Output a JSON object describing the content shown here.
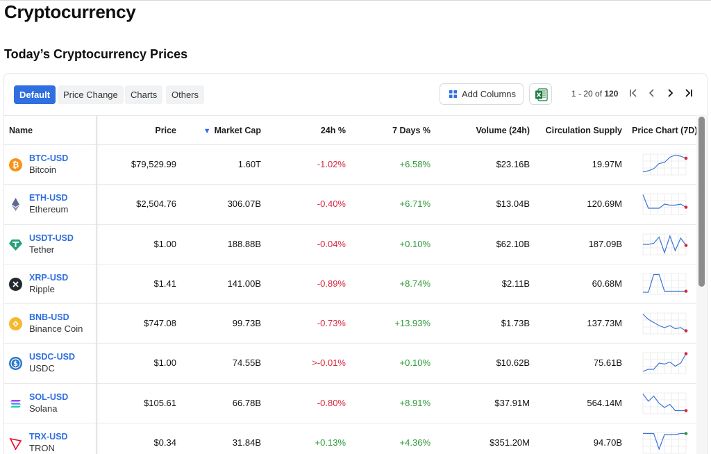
{
  "page": {
    "title": "Cryptocurrency",
    "section_title": "Today’s Cryptocurrency Prices"
  },
  "toolbar": {
    "tabs": [
      {
        "label": "Default",
        "active": true
      },
      {
        "label": "Price Change",
        "active": false
      },
      {
        "label": "Charts",
        "active": false
      },
      {
        "label": "Others",
        "active": false
      }
    ],
    "add_columns_label": "Add Columns",
    "add_columns_icon": "grid-plus-icon",
    "export_icon": "excel-icon",
    "pagination": {
      "range": "1 - 20 of ",
      "total": "120"
    }
  },
  "table": {
    "headers": {
      "name": "Name",
      "price": "Price",
      "market_cap": "Market Cap",
      "change_24h": "24h %",
      "change_7d": "7 Days %",
      "volume": "Volume (24h)",
      "supply": "Circulation Supply",
      "chart": "Price Chart (7D)"
    },
    "sort_indicator": "▼",
    "rows": [
      {
        "symbol": "BTC-USD",
        "name": "Bitcoin",
        "icon": "bitcoin-icon",
        "price": "$79,529.99",
        "market_cap": "1.60T",
        "change_24h": "-1.02%",
        "change_7d": "+6.58%",
        "volume": "$23.16B",
        "supply": "19.97M",
        "trend": [
          0.15,
          0.2,
          0.3,
          0.55,
          0.6,
          0.85,
          0.95,
          0.9,
          0.8
        ]
      },
      {
        "symbol": "ETH-USD",
        "name": "Ethereum",
        "icon": "ethereum-icon",
        "price": "$2,504.76",
        "market_cap": "306.07B",
        "change_24h": "-0.40%",
        "change_7d": "+6.71%",
        "volume": "$13.04B",
        "supply": "120.69M",
        "trend": [
          0.95,
          0.3,
          0.3,
          0.3,
          0.5,
          0.45,
          0.45,
          0.5,
          0.35
        ]
      },
      {
        "symbol": "USDT-USD",
        "name": "Tether",
        "icon": "tether-icon",
        "price": "$1.00",
        "market_cap": "188.88B",
        "change_24h": "-0.04%",
        "change_7d": "+0.10%",
        "volume": "$62.10B",
        "supply": "187.09B",
        "trend": [
          0.5,
          0.5,
          0.55,
          0.85,
          0.1,
          0.9,
          0.2,
          0.8,
          0.45
        ]
      },
      {
        "symbol": "XRP-USD",
        "name": "Ripple",
        "icon": "xrp-icon",
        "price": "$1.41",
        "market_cap": "141.00B",
        "change_24h": "-0.89%",
        "change_7d": "+8.74%",
        "volume": "$2.11B",
        "supply": "60.68M",
        "trend": [
          0.1,
          0.1,
          0.95,
          0.95,
          0.15,
          0.15,
          0.15,
          0.15,
          0.15
        ]
      },
      {
        "symbol": "BNB-USD",
        "name": "Binance Coin",
        "icon": "bnb-icon",
        "price": "$747.08",
        "market_cap": "99.73B",
        "change_24h": "-0.73%",
        "change_7d": "+13.93%",
        "volume": "$1.73B",
        "supply": "137.73M",
        "trend": [
          0.95,
          0.7,
          0.55,
          0.4,
          0.3,
          0.4,
          0.25,
          0.3,
          0.15
        ]
      },
      {
        "symbol": "USDC-USD",
        "name": "USDC",
        "icon": "usdc-icon",
        "price": "$1.00",
        "market_cap": "74.55B",
        "change_24h": ">-0.01%",
        "change_7d": "+0.10%",
        "volume": "$10.62B",
        "supply": "75.61B",
        "trend": [
          0.1,
          0.2,
          0.2,
          0.5,
          0.45,
          0.55,
          0.35,
          0.5,
          0.95
        ]
      },
      {
        "symbol": "SOL-USD",
        "name": "Solana",
        "icon": "solana-icon",
        "price": "$105.61",
        "market_cap": "66.78B",
        "change_24h": "-0.80%",
        "change_7d": "+8.91%",
        "volume": "$37.91M",
        "supply": "564.14M",
        "trend": [
          0.95,
          0.6,
          0.85,
          0.5,
          0.3,
          0.45,
          0.15,
          0.15,
          0.15
        ]
      },
      {
        "symbol": "TRX-USD",
        "name": "TRON",
        "icon": "tron-icon",
        "price": "$0.34",
        "market_cap": "31.84B",
        "change_24h": "+0.13%",
        "change_7d": "+4.36%",
        "volume": "$351.20M",
        "supply": "94.70B",
        "trend": [
          0.95,
          0.95,
          0.95,
          0.2,
          0.9,
          0.9,
          0.9,
          0.95,
          0.95
        ]
      }
    ]
  },
  "colors": {
    "accent": "#2f6fe0",
    "negative": "#d7263d",
    "positive": "#2f9a3a",
    "spark_line": "#3a74d8"
  }
}
